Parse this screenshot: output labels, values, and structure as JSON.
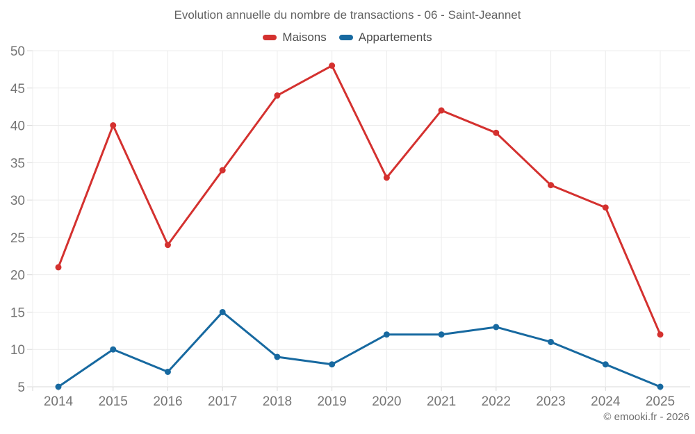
{
  "chart": {
    "attribution": "© emooki.fr - 2026"
  },
  "chart_data": {
    "type": "line",
    "title": "Evolution annuelle du nombre de transactions - 06 - Saint-Jeannet",
    "categories": [
      "2014",
      "2015",
      "2016",
      "2017",
      "2018",
      "2019",
      "2020",
      "2021",
      "2022",
      "2023",
      "2024",
      "2025"
    ],
    "series": [
      {
        "name": "Maisons",
        "color": "#d4312f",
        "values": [
          21,
          40,
          24,
          34,
          44,
          48,
          33,
          42,
          39,
          32,
          29,
          12
        ]
      },
      {
        "name": "Appartements",
        "color": "#1769a0",
        "values": [
          5,
          10,
          7,
          15,
          9,
          8,
          12,
          12,
          13,
          11,
          8,
          5
        ]
      }
    ],
    "xlabel": "",
    "ylabel": "",
    "ylim": [
      5,
      50
    ],
    "ytick_step": 5,
    "yticks": [
      5,
      10,
      15,
      20,
      25,
      30,
      35,
      40,
      45,
      50
    ],
    "grid": true,
    "legend_position": "top",
    "colors": {
      "grid": "#ececec",
      "axis": "#d8d8d8",
      "tick_label": "#757575",
      "title": "#616161",
      "legend_label": "#4d4d4d",
      "background": "#ffffff"
    }
  }
}
